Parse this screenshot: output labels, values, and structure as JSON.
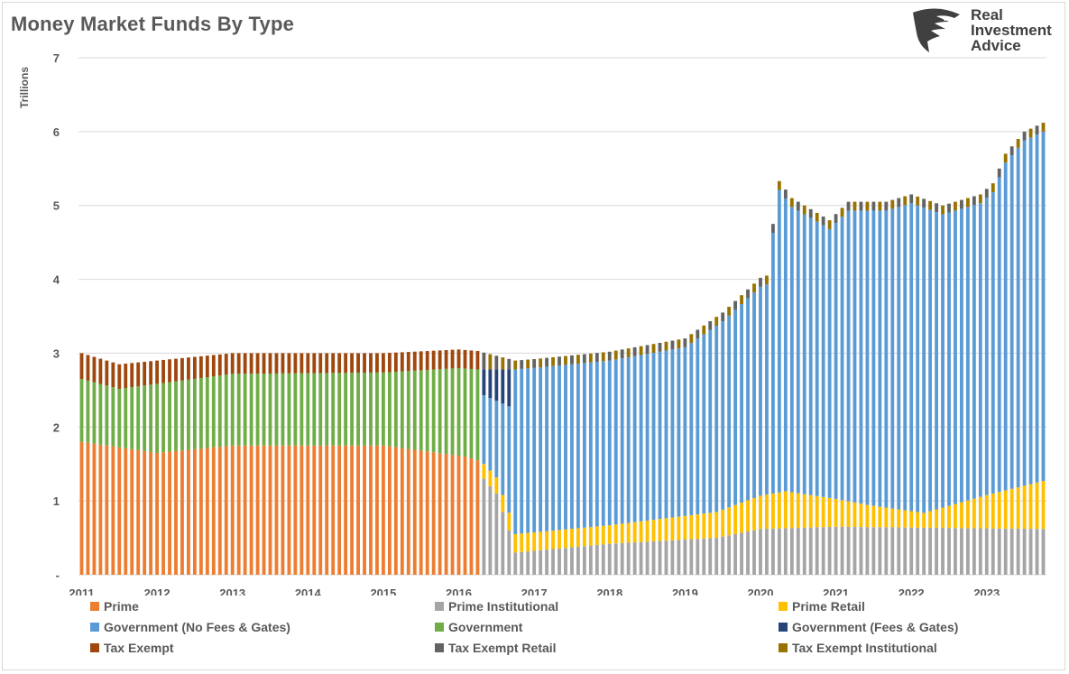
{
  "title": "Money Market Funds By Type",
  "logo": {
    "icon": "eagle-head-icon",
    "lines": [
      "Real",
      "Investment",
      "Advice"
    ]
  },
  "colors": {
    "prime": "#ed7d31",
    "prime_institutional": "#a5a5a5",
    "prime_retail": "#ffc000",
    "gov_no_fees": "#5b9bd5",
    "government": "#70ad47",
    "gov_fees": "#264478",
    "tax_exempt": "#9e480e",
    "tax_exempt_retail": "#636363",
    "tax_exempt_institutional": "#997300"
  },
  "legend": [
    {
      "name": "Prime",
      "color": "#ed7d31"
    },
    {
      "name": "Prime Institutional",
      "color": "#a5a5a5"
    },
    {
      "name": "Prime Retail",
      "color": "#ffc000"
    },
    {
      "name": "Government (No Fees & Gates)",
      "color": "#5b9bd5"
    },
    {
      "name": "Government",
      "color": "#70ad47"
    },
    {
      "name": "Government (Fees & Gates)",
      "color": "#264478"
    },
    {
      "name": "Tax Exempt",
      "color": "#9e480e"
    },
    {
      "name": "Tax Exempt Retail",
      "color": "#636363"
    },
    {
      "name": "Tax Exempt Institutional",
      "color": "#997300"
    }
  ],
  "chart_data": {
    "type": "bar",
    "stacked": true,
    "title": "Money Market Funds By Type",
    "ylabel": "Trillions",
    "xlabel": "",
    "ylim": [
      0,
      7
    ],
    "yticks": [
      0,
      1,
      2,
      3,
      4,
      5,
      6,
      7
    ],
    "ytick_labels": [
      "-",
      "1",
      "2",
      "3",
      "4",
      "5",
      "6",
      "7"
    ],
    "xtick_labels": [
      "2011",
      "2012",
      "2013",
      "2014",
      "2015",
      "2016",
      "2017",
      "2018",
      "2019",
      "2020",
      "2021",
      "2022",
      "2023"
    ],
    "grid": "horizontal",
    "legend_position": "bottom",
    "frequency": "monthly",
    "start": "2011-01",
    "end": "2023-10",
    "series_order": [
      "Prime",
      "Prime Institutional",
      "Prime Retail",
      "Government (No Fees & Gates)",
      "Government",
      "Government (Fees & Gates)",
      "Tax Exempt",
      "Tax Exempt Retail",
      "Tax Exempt Institutional"
    ],
    "totals_approx": {
      "2011-01": 3.0,
      "2012-01": 2.9,
      "2013-01": 3.0,
      "2014-01": 3.0,
      "2015-01": 3.0,
      "2016-01": 3.05,
      "2016-10": 2.9,
      "2017-01": 2.92,
      "2018-01": 3.0,
      "2019-01": 3.2,
      "2020-01": 4.0,
      "2020-04": 5.3,
      "2020-12": 4.8,
      "2021-06": 5.1,
      "2022-01": 5.1,
      "2022-06": 5.0,
      "2023-01": 5.3,
      "2023-04": 5.8,
      "2023-10": 6.1
    },
    "composition_notes": {
      "2011_2016": "Prime ~1.6-1.8, Government ~0.8-1.3, Tax Exempt ~0.25-0.35",
      "2016_transition": "Prime splits into Prime Institutional/Retail; Government shifts to Fees & Gates/No Fees",
      "2017_2023": "Prime Institutional ~0.3-0.65, Prime Retail ~0.2-0.65, Government (No Fees & Gates) ~2.2-4.7, Tax Exempt ~0.1"
    }
  }
}
